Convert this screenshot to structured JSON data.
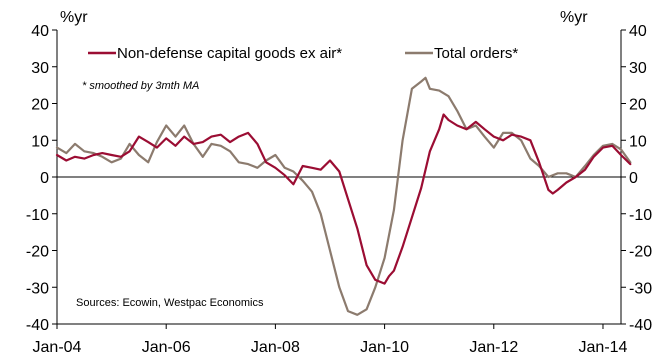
{
  "chart_data": {
    "type": "line",
    "left_unit_label": "%yr",
    "right_unit_label": "%yr",
    "ylim": [
      -40,
      40
    ],
    "yticks": [
      "-40",
      "-30",
      "-20",
      "-10",
      "0",
      "10",
      "20",
      "30",
      "40"
    ],
    "xlim": [
      2004.0,
      2014.33
    ],
    "xticks": [
      {
        "x": 2004,
        "label": "Jan-04"
      },
      {
        "x": 2006,
        "label": "Jan-06"
      },
      {
        "x": 2008,
        "label": "Jan-08"
      },
      {
        "x": 2010,
        "label": "Jan-10"
      },
      {
        "x": 2012,
        "label": "Jan-12"
      },
      {
        "x": 2014,
        "label": "Jan-14"
      }
    ],
    "legend_position": "top-left",
    "note": "* smoothed by 3mth MA",
    "source": "Sources: Ecowin, Westpac Economics",
    "series": [
      {
        "name": "Non-defense capital goods ex air*",
        "color": "#9B0D33",
        "points": [
          [
            2004.0,
            6.0
          ],
          [
            2004.17,
            4.5
          ],
          [
            2004.33,
            5.5
          ],
          [
            2004.5,
            5.0
          ],
          [
            2004.67,
            6.0
          ],
          [
            2004.83,
            6.5
          ],
          [
            2005.0,
            6.0
          ],
          [
            2005.17,
            5.5
          ],
          [
            2005.33,
            7.0
          ],
          [
            2005.5,
            11.0
          ],
          [
            2005.67,
            9.5
          ],
          [
            2005.83,
            8.0
          ],
          [
            2006.0,
            10.5
          ],
          [
            2006.17,
            8.5
          ],
          [
            2006.33,
            11.0
          ],
          [
            2006.5,
            9.0
          ],
          [
            2006.67,
            9.5
          ],
          [
            2006.83,
            11.0
          ],
          [
            2007.0,
            11.5
          ],
          [
            2007.17,
            9.5
          ],
          [
            2007.33,
            11.0
          ],
          [
            2007.5,
            12.0
          ],
          [
            2007.67,
            9.0
          ],
          [
            2007.83,
            4.0
          ],
          [
            2008.0,
            2.5
          ],
          [
            2008.17,
            0.5
          ],
          [
            2008.33,
            -2.0
          ],
          [
            2008.5,
            3.0
          ],
          [
            2008.67,
            2.5
          ],
          [
            2008.83,
            2.0
          ],
          [
            2009.0,
            4.5
          ],
          [
            2009.17,
            1.5
          ],
          [
            2009.33,
            -6.0
          ],
          [
            2009.5,
            -14.0
          ],
          [
            2009.67,
            -24.0
          ],
          [
            2009.83,
            -28.0
          ],
          [
            2010.0,
            -29.0
          ],
          [
            2010.08,
            -27.0
          ],
          [
            2010.17,
            -25.5
          ],
          [
            2010.33,
            -19.0
          ],
          [
            2010.5,
            -11.0
          ],
          [
            2010.67,
            -3.0
          ],
          [
            2010.83,
            7.0
          ],
          [
            2011.0,
            13.0
          ],
          [
            2011.08,
            17.0
          ],
          [
            2011.17,
            15.5
          ],
          [
            2011.33,
            14.0
          ],
          [
            2011.5,
            13.0
          ],
          [
            2011.67,
            15.0
          ],
          [
            2011.83,
            13.0
          ],
          [
            2012.0,
            11.0
          ],
          [
            2012.17,
            10.0
          ],
          [
            2012.33,
            11.5
          ],
          [
            2012.5,
            11.0
          ],
          [
            2012.67,
            10.0
          ],
          [
            2012.83,
            4.0
          ],
          [
            2013.0,
            -3.5
          ],
          [
            2013.08,
            -4.5
          ],
          [
            2013.17,
            -3.5
          ],
          [
            2013.33,
            -1.5
          ],
          [
            2013.5,
            0.0
          ],
          [
            2013.67,
            2.0
          ],
          [
            2013.83,
            5.5
          ],
          [
            2014.0,
            8.0
          ],
          [
            2014.17,
            8.5
          ],
          [
            2014.33,
            6.0
          ],
          [
            2014.5,
            3.5
          ]
        ]
      },
      {
        "name": "Total orders*",
        "color": "#8C7B6E",
        "points": [
          [
            2004.0,
            8.0
          ],
          [
            2004.17,
            6.5
          ],
          [
            2004.33,
            9.0
          ],
          [
            2004.5,
            7.0
          ],
          [
            2004.67,
            6.5
          ],
          [
            2004.83,
            5.5
          ],
          [
            2005.0,
            4.0
          ],
          [
            2005.17,
            5.0
          ],
          [
            2005.33,
            9.0
          ],
          [
            2005.5,
            6.0
          ],
          [
            2005.67,
            4.0
          ],
          [
            2005.83,
            9.5
          ],
          [
            2006.0,
            14.0
          ],
          [
            2006.17,
            11.0
          ],
          [
            2006.33,
            14.0
          ],
          [
            2006.5,
            9.0
          ],
          [
            2006.67,
            5.5
          ],
          [
            2006.83,
            9.0
          ],
          [
            2007.0,
            8.5
          ],
          [
            2007.17,
            7.0
          ],
          [
            2007.33,
            4.0
          ],
          [
            2007.5,
            3.5
          ],
          [
            2007.67,
            2.5
          ],
          [
            2007.83,
            4.5
          ],
          [
            2008.0,
            6.0
          ],
          [
            2008.17,
            2.5
          ],
          [
            2008.33,
            1.5
          ],
          [
            2008.5,
            -1.0
          ],
          [
            2008.67,
            -4.0
          ],
          [
            2008.83,
            -10.0
          ],
          [
            2009.0,
            -20.0
          ],
          [
            2009.17,
            -30.0
          ],
          [
            2009.33,
            -36.5
          ],
          [
            2009.5,
            -37.5
          ],
          [
            2009.67,
            -36.0
          ],
          [
            2009.83,
            -30.0
          ],
          [
            2010.0,
            -22.0
          ],
          [
            2010.17,
            -9.0
          ],
          [
            2010.33,
            10.0
          ],
          [
            2010.5,
            24.0
          ],
          [
            2010.67,
            26.0
          ],
          [
            2010.75,
            27.0
          ],
          [
            2010.83,
            24.0
          ],
          [
            2011.0,
            23.5
          ],
          [
            2011.17,
            22.0
          ],
          [
            2011.33,
            18.0
          ],
          [
            2011.5,
            13.0
          ],
          [
            2011.67,
            14.0
          ],
          [
            2011.83,
            11.0
          ],
          [
            2012.0,
            8.0
          ],
          [
            2012.17,
            12.0
          ],
          [
            2012.33,
            12.0
          ],
          [
            2012.5,
            10.0
          ],
          [
            2012.67,
            5.0
          ],
          [
            2012.83,
            3.0
          ],
          [
            2013.0,
            0.0
          ],
          [
            2013.17,
            1.0
          ],
          [
            2013.33,
            1.0
          ],
          [
            2013.5,
            0.0
          ],
          [
            2013.67,
            3.0
          ],
          [
            2013.83,
            6.0
          ],
          [
            2014.0,
            8.5
          ],
          [
            2014.17,
            9.0
          ],
          [
            2014.33,
            7.5
          ],
          [
            2014.5,
            4.0
          ]
        ]
      }
    ]
  }
}
